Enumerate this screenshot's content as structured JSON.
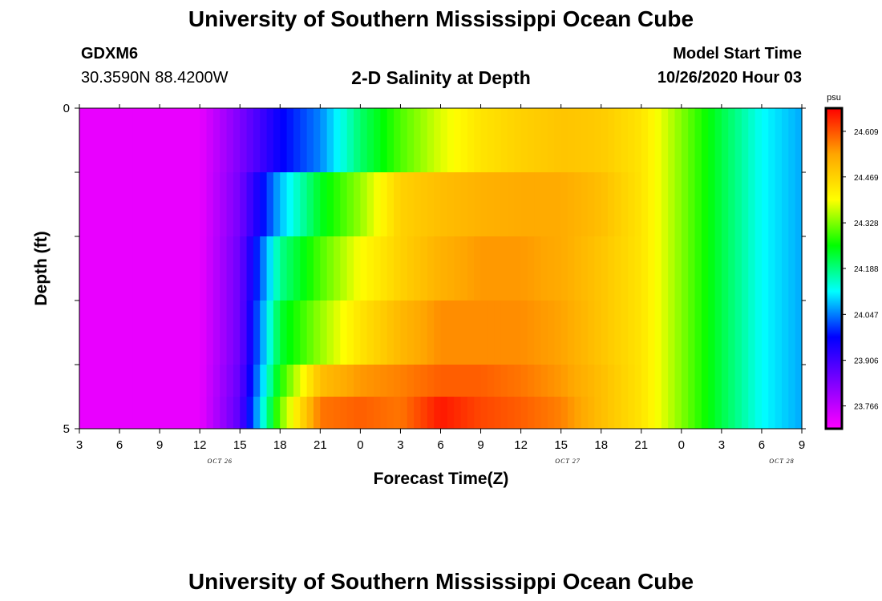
{
  "header": {
    "title": "University of Southern Mississippi Ocean Cube",
    "station": "GDXM6",
    "coords": "30.3590N 88.4200W",
    "subtitle": "2-D Salinity at Depth",
    "model_label": "Model Start Time",
    "model_time": "10/26/2020 Hour 03"
  },
  "footer": {
    "title": "University of Southern Mississippi Ocean Cube"
  },
  "colorbar": {
    "unit": "psu",
    "min": 23.696,
    "max": 24.68,
    "tick_labels": [
      "24.609",
      "24.469",
      "24.328",
      "24.188",
      "24.047",
      "23.906",
      "23.766"
    ],
    "colors": [
      "#ff00ff",
      "#8000ff",
      "#0000ff",
      "#00ffff",
      "#00ff00",
      "#ffff00",
      "#ffa500",
      "#ff0000"
    ]
  },
  "chart_data": {
    "type": "heatmap",
    "title": "2-D Salinity at Depth",
    "xlabel": "Forecast Time(Z)",
    "ylabel": "Depth (ft)",
    "x_hours": [
      3,
      6,
      9,
      12,
      15,
      18,
      21,
      24,
      27,
      30,
      33,
      36,
      39,
      42,
      45,
      48,
      51,
      54,
      57
    ],
    "x_tick_labels": [
      "3",
      "6",
      "9",
      "12",
      "15",
      "18",
      "21",
      "0",
      "3",
      "6",
      "9",
      "12",
      "15",
      "18",
      "21",
      "0",
      "3",
      "6",
      "9"
    ],
    "date_labels": [
      "OCT 26",
      "OCT 27",
      "OCT 28"
    ],
    "y_tick_labels": [
      "0",
      "5"
    ],
    "ylim": [
      0,
      5
    ],
    "depth_rows": [
      {
        "depth": 0.5,
        "values": [
          23.72,
          23.72,
          23.72,
          23.72,
          23.84,
          23.97,
          24.05,
          24.2,
          24.3,
          24.38,
          24.44,
          24.47,
          24.49,
          24.48,
          24.44,
          24.33,
          24.22,
          24.12,
          24.07
        ]
      },
      {
        "depth": 1.5,
        "values": [
          23.72,
          23.72,
          23.72,
          23.72,
          23.85,
          24.08,
          24.24,
          24.34,
          24.47,
          24.5,
          24.52,
          24.53,
          24.53,
          24.5,
          24.44,
          24.33,
          24.22,
          24.12,
          24.07
        ]
      },
      {
        "depth": 2.5,
        "values": [
          23.72,
          23.72,
          23.72,
          23.72,
          23.86,
          24.18,
          24.3,
          24.4,
          24.47,
          24.52,
          24.55,
          24.55,
          24.53,
          24.49,
          24.44,
          24.33,
          24.22,
          24.12,
          24.07
        ]
      },
      {
        "depth": 3.5,
        "values": [
          23.72,
          23.72,
          23.72,
          23.72,
          23.86,
          24.23,
          24.34,
          24.44,
          24.51,
          24.56,
          24.56,
          24.56,
          24.54,
          24.49,
          24.44,
          24.33,
          24.22,
          24.12,
          24.07
        ]
      },
      {
        "depth": 4.5,
        "values": [
          23.72,
          23.72,
          23.72,
          23.72,
          23.87,
          24.27,
          24.5,
          24.55,
          24.57,
          24.6,
          24.6,
          24.58,
          24.55,
          24.5,
          24.44,
          24.33,
          24.22,
          24.12,
          24.07
        ]
      },
      {
        "depth": 5.0,
        "values": [
          23.72,
          23.72,
          23.72,
          23.72,
          23.88,
          24.32,
          24.58,
          24.6,
          24.58,
          24.66,
          24.62,
          24.6,
          24.57,
          24.5,
          24.44,
          24.33,
          24.22,
          24.12,
          24.07
        ]
      }
    ]
  }
}
